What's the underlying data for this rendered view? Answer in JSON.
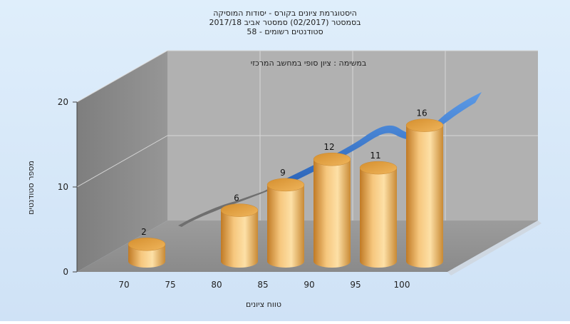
{
  "chart_data": {
    "type": "bar",
    "title_lines": [
      "היסטוגרמת ציונים בקורס - יסודות המוסיקה",
      "בסמסטר  (02/2017)  סמסטר אביב 2017/18",
      "סטודנטים רשומים - 58"
    ],
    "subtitle": "במשימה : ציון סופי במחשב המרכזי",
    "xlabel": "טווח ציונים",
    "ylabel": "מספר סטודנטים",
    "x_ticks": [
      "70",
      "75",
      "80",
      "85",
      "90",
      "95",
      "100"
    ],
    "y_ticks": [
      0,
      10,
      20
    ],
    "ylim": [
      0,
      20
    ],
    "categories": [
      "70",
      "80",
      "85",
      "90",
      "95",
      "100"
    ],
    "values": [
      2,
      6,
      9,
      12,
      11,
      16
    ],
    "trend": "smoothed distribution ribbon behind bars",
    "grid": true,
    "colors": {
      "bar": "#e7a94b",
      "trend": "#3d7fd6",
      "trend_shadow": "#707070"
    }
  }
}
